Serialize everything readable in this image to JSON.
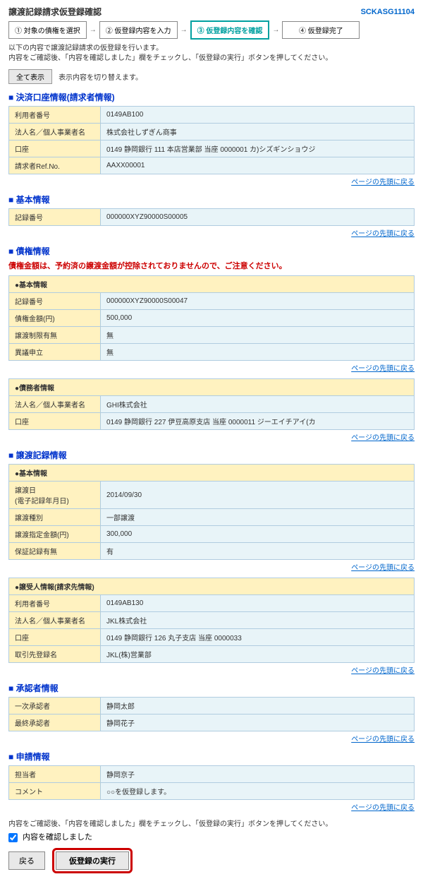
{
  "header": {
    "title": "譲渡記録請求仮登録確認",
    "code": "SCKASG11104"
  },
  "steps": {
    "s1": "① 対象の債権を選択",
    "s2": "② 仮登録内容を入力",
    "s3": "③ 仮登録内容を確認",
    "s4": "④ 仮登録完了",
    "arrow": "→"
  },
  "desc": "以下の内容で譲渡記録請求の仮登録を行います。\n内容をご確認後、「内容を確認しました」欄をチェックし、「仮登録の実行」ボタンを押してください。",
  "toggle": {
    "btn": "全て表示",
    "text": "表示内容を切り替えます。"
  },
  "sec1": {
    "title": "決済口座情報(請求者情報)",
    "r1k": "利用者番号",
    "r1v": "0149AB100",
    "r2k": "法人名／個人事業者名",
    "r2v": "株式会社しずぎん商事",
    "r3k": "口座",
    "r3v": "0149 静岡銀行 111 本店営業部 当座 0000001 カ)シズギンショウジ",
    "r4k": "請求者Ref.No.",
    "r4v": "AAXX00001"
  },
  "sec2": {
    "title": "基本情報",
    "r1k": "記録番号",
    "r1v": "000000XYZ90000S00005"
  },
  "sec3": {
    "title": "債権情報",
    "warning": "債権金額は、予約済の譲渡金額が控除されておりませんので、ご注意ください。",
    "sub1": "●基本情報",
    "r1k": "記録番号",
    "r1v": "000000XYZ90000S00047",
    "r2k": "債権金額(円)",
    "r2v": "500,000",
    "r3k": "譲渡制限有無",
    "r3v": "無",
    "r4k": "異議申立",
    "r4v": "無",
    "sub2": "●債務者情報",
    "r5k": "法人名／個人事業者名",
    "r5v": "GHI株式会社",
    "r6k": "口座",
    "r6v": "0149 静岡銀行 227 伊豆高原支店 当座 0000011 ジーエイチアイ(カ"
  },
  "sec4": {
    "title": "譲渡記録情報",
    "sub1": "●基本情報",
    "r1k": "譲渡日\n(電子記録年月日)",
    "r1v": "2014/09/30",
    "r2k": "譲渡種別",
    "r2v": "一部譲渡",
    "r3k": "譲渡指定金額(円)",
    "r3v": "300,000",
    "r4k": "保証記録有無",
    "r4v": "有",
    "sub2": "●譲受人情報(請求先情報)",
    "r5k": "利用者番号",
    "r5v": "0149AB130",
    "r6k": "法人名／個人事業者名",
    "r6v": "JKL株式会社",
    "r7k": "口座",
    "r7v": "0149 静岡銀行 126 丸子支店 当座 0000033",
    "r8k": "取引先登録名",
    "r8v": "JKL(株)営業部"
  },
  "sec5": {
    "title": "承認者情報",
    "r1k": "一次承認者",
    "r1v": "静岡太郎",
    "r2k": "最終承認者",
    "r2v": "静岡花子"
  },
  "sec6": {
    "title": "申請情報",
    "r1k": "担当者",
    "r1v": "静岡京子",
    "r2k": "コメント",
    "r2v": "○○を仮登録します。"
  },
  "pageTop": "ページの先頭に戻る",
  "footerText": "内容をご確認後、「内容を確認しました」欄をチェックし、「仮登録の実行」ボタンを押してください。",
  "checkboxLabel": "内容を確認しました",
  "btnBack": "戻る",
  "btnSubmit": "仮登録の実行"
}
